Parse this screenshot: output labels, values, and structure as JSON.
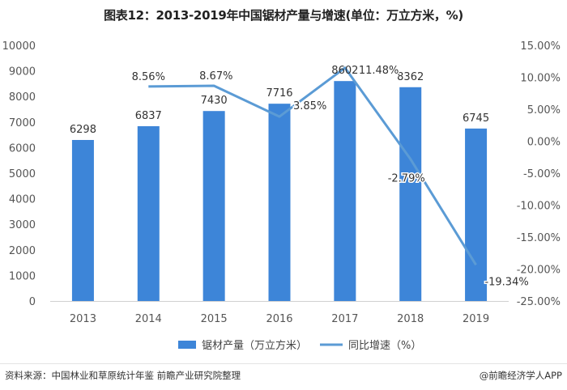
{
  "chart_data": {
    "type": "bar+line",
    "title": "图表12：2013-2019年中国锯材产量与增速(单位：万立方米，%)",
    "categories": [
      "2013",
      "2014",
      "2015",
      "2016",
      "2017",
      "2018",
      "2019"
    ],
    "series": [
      {
        "name": "锯材产量（万立方米）",
        "type": "bar",
        "axis": "left",
        "values": [
          6298,
          6837,
          7430,
          7716,
          8602,
          8362,
          6745
        ],
        "labels": [
          "6298",
          "6837",
          "7430",
          "7716",
          "8602",
          "8362",
          "6745"
        ]
      },
      {
        "name": "同比增速（%）",
        "type": "line",
        "axis": "right",
        "values": [
          null,
          8.56,
          8.67,
          3.85,
          11.48,
          -2.79,
          -19.34
        ],
        "labels": [
          "",
          "8.56%",
          "8.67%",
          "3.85%",
          "11.48%",
          "-2.79%",
          "-19.34%"
        ]
      }
    ],
    "left_axis": {
      "ylim": [
        0,
        10000
      ],
      "ticks": [
        "0",
        "1000",
        "2000",
        "3000",
        "4000",
        "5000",
        "6000",
        "7000",
        "8000",
        "9000",
        "10000"
      ]
    },
    "right_axis": {
      "ylim": [
        -25,
        15
      ],
      "ticks": [
        "15.00%",
        "10.00%",
        "5.00%",
        "0.00%",
        "-5.00%",
        "-10.00%",
        "-15.00%",
        "-20.00%",
        "-25.00%"
      ]
    },
    "legend": {
      "position": "bottom",
      "entries": [
        "锯材产量（万立方米）",
        "同比增速（%）"
      ]
    },
    "grid": false
  },
  "colors": {
    "bar": "#3d85d8",
    "line": "#5b9bd5",
    "axis": "#d0d0d0"
  },
  "footer": {
    "source": "资料来源：中国林业和草原统计年鉴 前瞻产业研究院整理",
    "brand": "@前瞻经济学人APP"
  }
}
